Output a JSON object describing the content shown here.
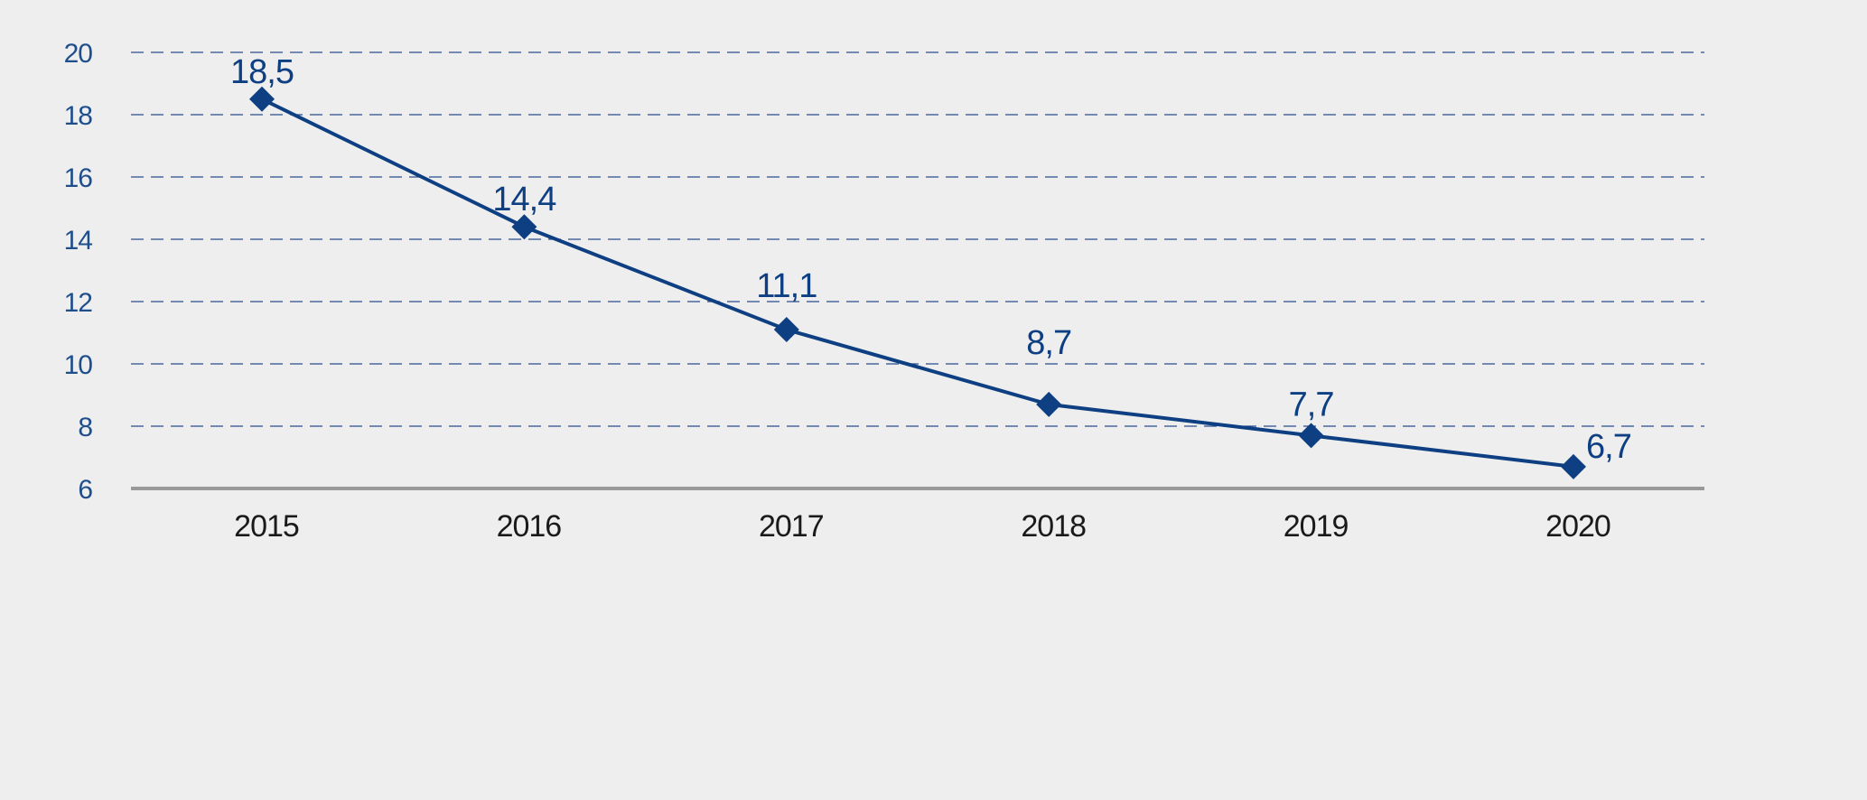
{
  "chart_data": {
    "type": "line",
    "title": "",
    "xlabel": "",
    "ylabel": "",
    "categories": [
      "2015",
      "2016",
      "2017",
      "2018",
      "2019",
      "2020"
    ],
    "series": [
      {
        "values": [
          18.5,
          14.4,
          11.1,
          8.7,
          7.7,
          6.7
        ],
        "labels": [
          "18,5",
          "14,4",
          "11,1",
          "8,7",
          "7,7",
          "6,7"
        ],
        "marker": "diamond"
      }
    ],
    "yticks": [
      6,
      8,
      10,
      12,
      14,
      16,
      18,
      20
    ],
    "ytick_labels": [
      "6",
      "8",
      "10",
      "12",
      "14",
      "16",
      "18",
      "20"
    ],
    "ylim": [
      6,
      20
    ],
    "grid": "horizontal-dashed",
    "legend": "none",
    "colors": {
      "series": "#0d3f82",
      "grid": "#2a4d8f",
      "baseline": "#999999",
      "ytick_text": "#1f4e8c",
      "xtick_text": "#1a1a1a",
      "label_text": "#0d3f82",
      "background": "#eeeeee"
    }
  }
}
